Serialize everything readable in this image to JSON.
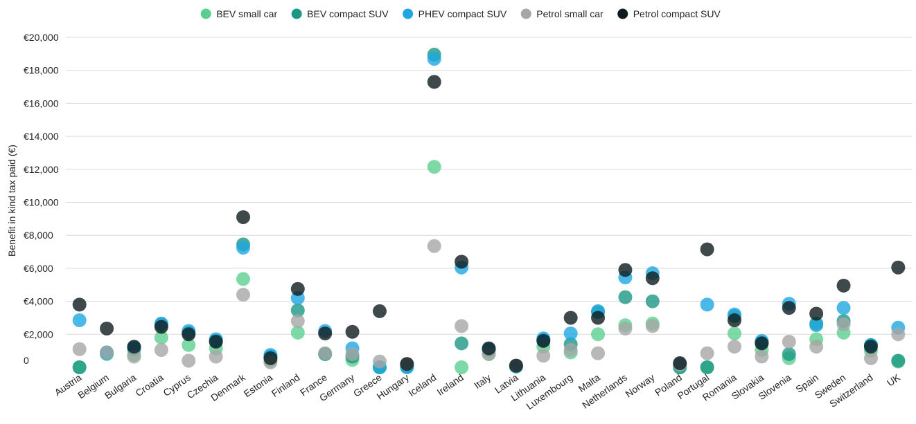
{
  "chart_data": {
    "type": "scatter",
    "ylabel": "Benefit in kind tax paid (€)",
    "xlabel": "",
    "ylim": [
      0,
      20000
    ],
    "yticks": [
      0,
      2000,
      4000,
      6000,
      8000,
      10000,
      12000,
      14000,
      16000,
      18000,
      20000
    ],
    "ytick_labels": [
      "0",
      "€2,000",
      "€4,000",
      "€6,000",
      "€8,000",
      "€10,000",
      "€12,000",
      "€14,000",
      "€16,000",
      "€18,000",
      "€20,000"
    ],
    "grid": true,
    "legend_position": "top-center",
    "categories": [
      "Austria",
      "Belgium",
      "Bulgaria",
      "Croatia",
      "Cyprus",
      "Czechia",
      "Denmark",
      "Estonia",
      "Finland",
      "France",
      "Germany",
      "Greece",
      "Hungary",
      "Iceland",
      "Ireland",
      "Italy",
      "Latvia",
      "Lithuania",
      "Luxembourg",
      "Malta",
      "Netherlands",
      "Norway",
      "Poland",
      "Portugal",
      "Romania",
      "Slovakia",
      "Slovenia",
      "Spain",
      "Sweden",
      "Switzerland",
      "UK"
    ],
    "series": [
      {
        "name": "BEV small car",
        "color": "#5ccf8f",
        "values": [
          0,
          800,
          750,
          1800,
          1350,
          1150,
          5350,
          400,
          2100,
          800,
          450,
          0,
          50,
          12150,
          0,
          800,
          50,
          1250,
          900,
          2000,
          2550,
          2650,
          0,
          0,
          2050,
          1050,
          550,
          1700,
          2100,
          1000,
          350
        ]
      },
      {
        "name": "BEV compact SUV",
        "color": "#1b9783",
        "values": [
          0,
          900,
          1100,
          2600,
          2100,
          1600,
          7450,
          650,
          3450,
          800,
          650,
          0,
          50,
          18950,
          1450,
          1050,
          50,
          1650,
          1400,
          3350,
          4250,
          4000,
          0,
          0,
          3100,
          1500,
          800,
          2650,
          2800,
          1350,
          400
        ]
      },
      {
        "name": "PHEV compact SUV",
        "color": "#1ea7e1",
        "values": [
          2850,
          850,
          1200,
          2650,
          2200,
          1700,
          7250,
          750,
          4200,
          2200,
          1150,
          0,
          0,
          18700,
          6050,
          1100,
          50,
          1750,
          2050,
          3400,
          5450,
          5700,
          200,
          3800,
          3200,
          1600,
          3850,
          2550,
          3600,
          1350,
          2400
        ]
      },
      {
        "name": "Petrol small car",
        "color": "#a6a6a6",
        "values": [
          1100,
          900,
          650,
          1050,
          400,
          650,
          4400,
          300,
          2800,
          850,
          800,
          350,
          200,
          7350,
          2500,
          800,
          100,
          700,
          1050,
          850,
          2350,
          2500,
          150,
          850,
          1250,
          650,
          1550,
          1250,
          2600,
          550,
          2000
        ]
      },
      {
        "name": "Petrol compact SUV",
        "color": "#0f1c1f",
        "values": [
          3800,
          2350,
          1250,
          2450,
          2000,
          1550,
          9100,
          550,
          4750,
          2050,
          2150,
          3400,
          200,
          17300,
          6400,
          1150,
          100,
          1600,
          3000,
          3000,
          5900,
          5400,
          250,
          7150,
          2850,
          1450,
          3600,
          3250,
          4950,
          1250,
          6050
        ]
      }
    ]
  }
}
